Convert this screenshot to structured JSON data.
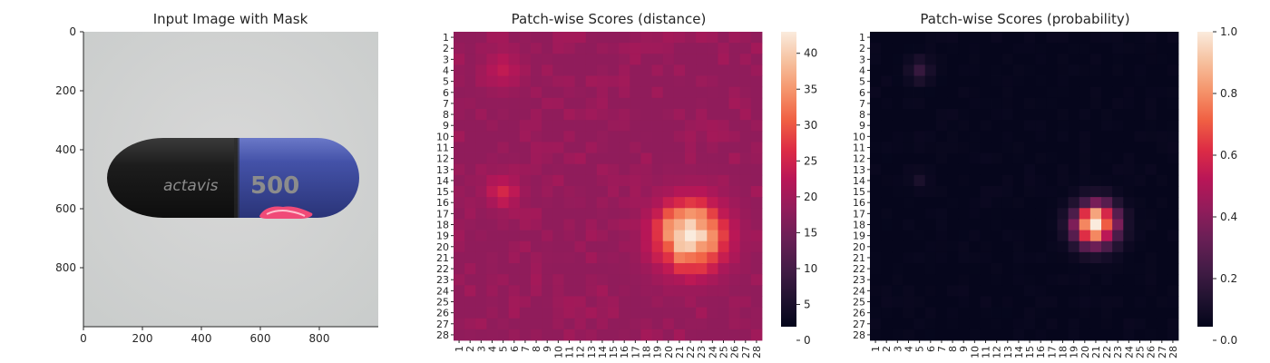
{
  "chart_data": [
    {
      "type": "image",
      "title": "Input Image with Mask",
      "xlim": [
        0,
        1000
      ],
      "ylim": [
        1000,
        0
      ],
      "xticks": [
        "0",
        "200",
        "400",
        "600",
        "800"
      ],
      "yticks": [
        "0",
        "200",
        "400",
        "600",
        "800"
      ],
      "image_text": {
        "brand": "actavis",
        "dose": "500"
      }
    },
    {
      "type": "heatmap",
      "title": "Patch-wise Scores (distance)",
      "size": 28,
      "row_labels": [
        "1",
        "2",
        "3",
        "4",
        "5",
        "6",
        "7",
        "8",
        "9",
        "10",
        "11",
        "12",
        "13",
        "14",
        "15",
        "16",
        "17",
        "18",
        "19",
        "20",
        "21",
        "22",
        "23",
        "24",
        "25",
        "26",
        "27",
        "28"
      ],
      "col_labels": [
        "1",
        "2",
        "3",
        "4",
        "5",
        "6",
        "7",
        "8",
        "9",
        "10",
        "11",
        "12",
        "13",
        "14",
        "15",
        "16",
        "17",
        "18",
        "19",
        "20",
        "21",
        "22",
        "23",
        "24",
        "25",
        "26",
        "27",
        "28"
      ],
      "vmin": 0,
      "vmax": 43,
      "colorbar_ticks": [
        "0",
        "5",
        "10",
        "15",
        "20",
        "25",
        "30",
        "35",
        "40"
      ],
      "base_value": 17,
      "hotspots": [
        {
          "row": 19,
          "col": 22,
          "peak": 43,
          "spread": 2.1
        },
        {
          "row": 15,
          "col": 5,
          "peak": 24,
          "spread": 1.1
        },
        {
          "row": 4,
          "col": 5,
          "peak": 22,
          "spread": 1.2
        }
      ]
    },
    {
      "type": "heatmap",
      "title": "Patch-wise Scores (probability)",
      "size": 28,
      "row_labels": [
        "1",
        "2",
        "3",
        "4",
        "5",
        "6",
        "7",
        "8",
        "9",
        "10",
        "11",
        "12",
        "13",
        "14",
        "15",
        "16",
        "17",
        "18",
        "19",
        "20",
        "21",
        "22",
        "23",
        "24",
        "25",
        "26",
        "27",
        "28"
      ],
      "col_labels": [
        "1",
        "2",
        "3",
        "4",
        "5",
        "6",
        "7",
        "8",
        "9",
        "10",
        "11",
        "12",
        "13",
        "14",
        "15",
        "16",
        "17",
        "18",
        "19",
        "20",
        "21",
        "22",
        "23",
        "24",
        "25",
        "26",
        "27",
        "28"
      ],
      "vmin": 0,
      "vmax": 1,
      "colorbar_ticks": [
        "0.0",
        "0.2",
        "0.4",
        "0.6",
        "0.8",
        "1.0"
      ],
      "base_value": 0.01,
      "hotspots": [
        {
          "row": 18,
          "col": 21,
          "peak": 1.0,
          "spread": 1.3
        },
        {
          "row": 4,
          "col": 5,
          "peak": 0.18,
          "spread": 0.7
        },
        {
          "row": 14,
          "col": 5,
          "peak": 0.08,
          "spread": 0.6
        }
      ]
    }
  ]
}
